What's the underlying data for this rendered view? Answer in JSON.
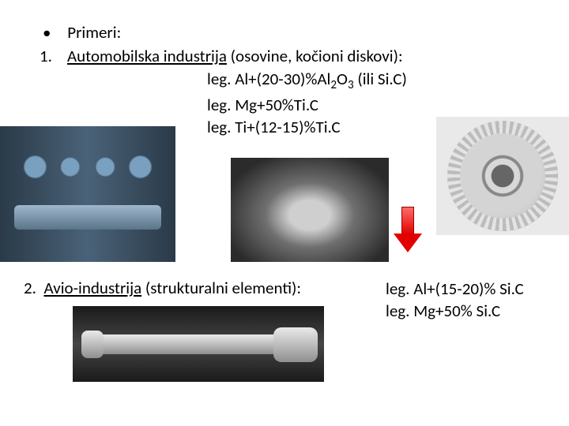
{
  "bullet": "Primeri:",
  "section1": {
    "num": "1.",
    "title": "Automobilska industrija",
    "paren": " (osovine, kočioni diskovi):",
    "legs": [
      "leg. Al+(20-30)%Al",
      "O",
      " (ili Si.C)"
    ],
    "sub1": "2",
    "sub2": "3",
    "leg2": "leg. Mg+50%Ti.C",
    "leg3": "leg. Ti+(12-15)%Ti.C"
  },
  "section2": {
    "num": "2.",
    "title": "Avio-industrija",
    "paren": " (strukturalni elementi):",
    "leg1": "leg. Al+(15-20)% Si.C",
    "leg2": "leg. Mg+50% Si.C"
  }
}
